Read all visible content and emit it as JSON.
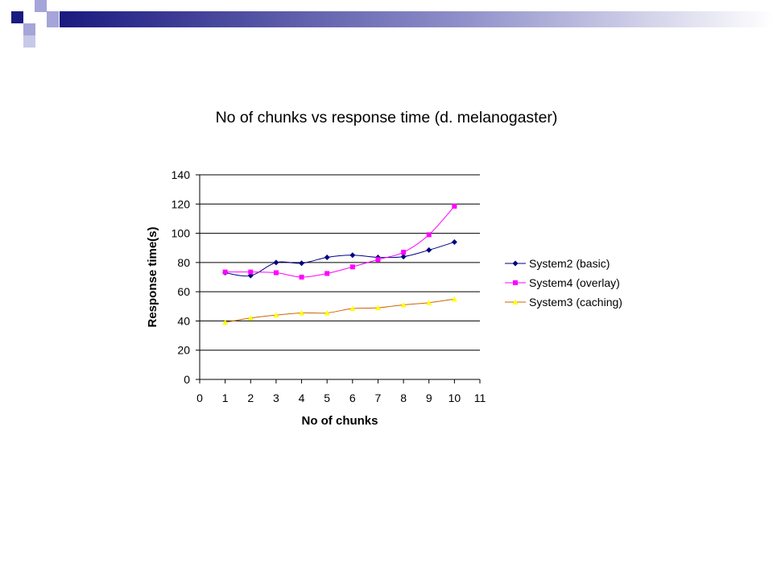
{
  "slide": {
    "header_colors": {
      "dark": "#1a1a80",
      "light": "#a5a5d9"
    }
  },
  "chart_data": {
    "type": "line",
    "title": "No of chunks vs response time (d. melanogaster)",
    "xlabel": "No of chunks",
    "ylabel": "Response time(s)",
    "xlim": [
      0,
      11
    ],
    "ylim": [
      0,
      140
    ],
    "x_ticks": [
      0,
      1,
      2,
      3,
      4,
      5,
      6,
      7,
      8,
      9,
      10,
      11
    ],
    "y_ticks": [
      0,
      20,
      40,
      60,
      80,
      100,
      120,
      140
    ],
    "grid": "horizontal",
    "legend_position": "right",
    "x": [
      1,
      2,
      3,
      4,
      5,
      6,
      7,
      8,
      9,
      10
    ],
    "series": [
      {
        "name": "System2 (basic)",
        "color": "#000080",
        "line_color": "#000080",
        "marker": "diamond",
        "values": [
          73,
          71,
          80,
          79.5,
          83.5,
          85,
          83.5,
          84,
          88.5,
          94
        ]
      },
      {
        "name": "System4 (overlay)",
        "color": "#ff00ff",
        "line_color": "#ff00ff",
        "marker": "square",
        "values": [
          73.5,
          73.5,
          73,
          70,
          72.5,
          77,
          82,
          87,
          99,
          118.5
        ]
      },
      {
        "name": "System3 (caching)",
        "color": "#ffff00",
        "line_color": "#cc6600",
        "marker": "triangle",
        "values": [
          39,
          42,
          44,
          45.5,
          45.5,
          48.5,
          49,
          51,
          52.5,
          55
        ]
      }
    ]
  }
}
